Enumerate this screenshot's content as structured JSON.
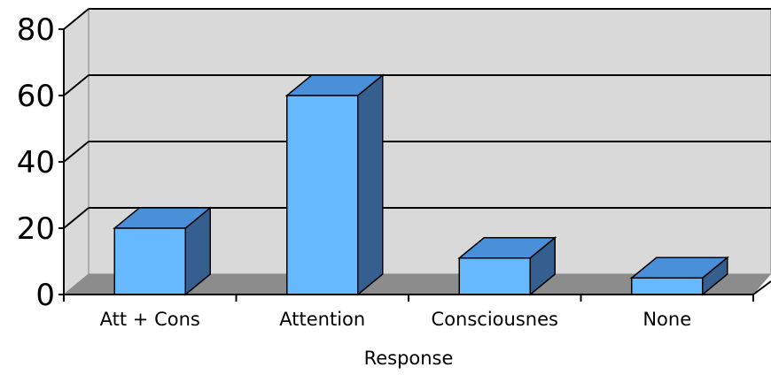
{
  "chart_data": {
    "type": "bar",
    "title": "",
    "xlabel": "Response",
    "ylabel": "",
    "categories": [
      "Att + Cons",
      "Attention",
      "Consciousnes",
      "None"
    ],
    "values": [
      20,
      60,
      11,
      5
    ],
    "ylim": [
      0,
      80
    ],
    "yticks": [
      "0",
      "20",
      "40",
      "60",
      "80"
    ],
    "grid": true,
    "legend": "none",
    "colors": {
      "bar_front": "#66b8ff",
      "bar_top": "#4a90d9",
      "bar_side": "#355f8f",
      "wall": "#d9d9d9",
      "floor": "#8c8c8c",
      "gridline": "#000000"
    }
  }
}
